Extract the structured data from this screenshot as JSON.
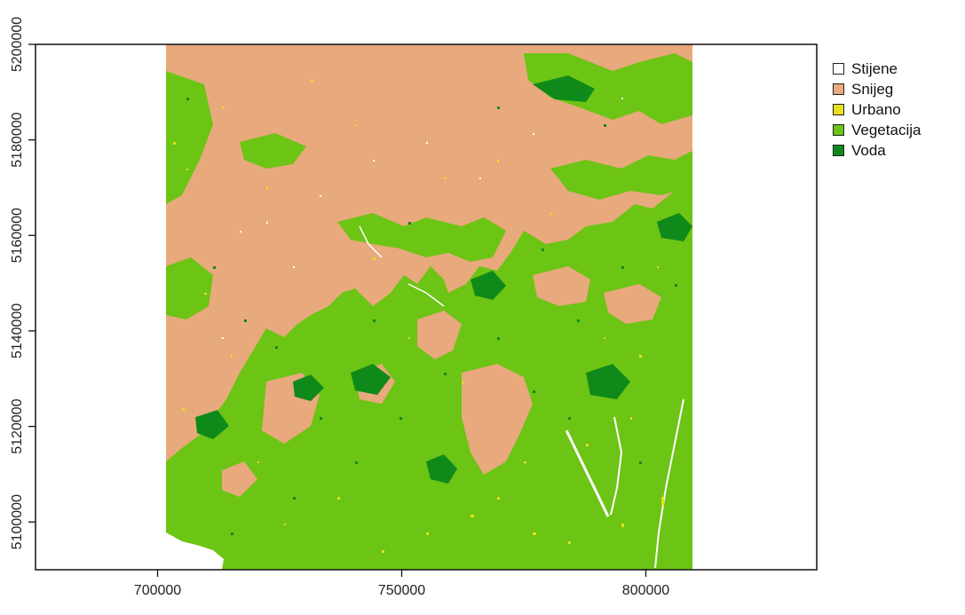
{
  "map": {
    "x_axis": {
      "range": [
        675000,
        835000
      ],
      "ticks": [
        700000,
        750000,
        800000
      ],
      "tick_labels": [
        "700000",
        "750000",
        "800000"
      ]
    },
    "y_axis": {
      "range": [
        5090000,
        5200000
      ],
      "ticks": [
        5100000,
        5120000,
        5140000,
        5160000,
        5180000,
        5200000
      ],
      "tick_labels": [
        "5100000",
        "5120000",
        "5140000",
        "5160000",
        "5180000",
        "5200000"
      ]
    },
    "raster_extent": {
      "x": [
        700000,
        810000
      ],
      "y": [
        5090000,
        5200000
      ]
    },
    "legend": {
      "placement": "top-right, outside plot",
      "items": [
        {
          "label": "Stijene",
          "color": "#ffffff"
        },
        {
          "label": "Snijeg",
          "color": "#e8a97c"
        },
        {
          "label": "Urbano",
          "color": "#e6e01e"
        },
        {
          "label": "Vegetacija",
          "color": "#6cc414"
        },
        {
          "label": "Voda",
          "color": "#0f8a1a"
        }
      ]
    }
  }
}
